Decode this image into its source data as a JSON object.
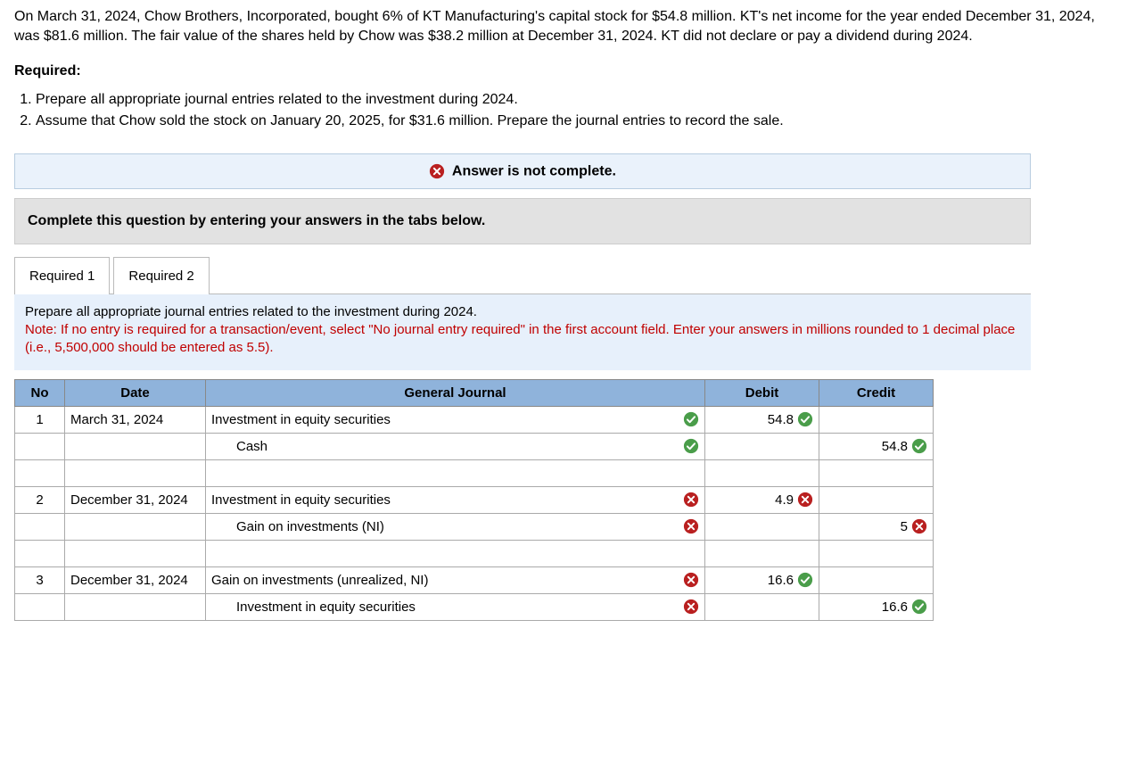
{
  "problem": {
    "paragraph": "On March 31, 2024, Chow Brothers, Incorporated, bought 6% of KT Manufacturing's capital stock for $54.8 million. KT's net income for the year ended December 31, 2024, was $81.6 million. The fair value of the shares held by Chow was $38.2 million at December 31, 2024. KT did not declare or pay a dividend during 2024.",
    "required_heading": "Required:",
    "requirements": [
      "Prepare all appropriate journal entries related to the investment during 2024.",
      "Assume that Chow sold the stock on January 20, 2025, for $31.6 million. Prepare the journal entries to record the sale."
    ]
  },
  "status": {
    "icon": "x-icon",
    "text": "Answer is not complete."
  },
  "instruction_bar": "Complete this question by entering your answers in the tabs below.",
  "tabs": [
    {
      "label": "Required 1",
      "active": true
    },
    {
      "label": "Required 2",
      "active": false
    }
  ],
  "panel": {
    "prompt": "Prepare all appropriate journal entries related to the investment during 2024.",
    "note": "Note: If no entry is required for a transaction/event, select \"No journal entry required\" in the first account field. Enter your answers in millions rounded to 1 decimal place (i.e., 5,500,000 should be entered as 5.5)."
  },
  "table": {
    "headers": {
      "no": "No",
      "date": "Date",
      "gj": "General Journal",
      "debit": "Debit",
      "credit": "Credit"
    },
    "rows": [
      {
        "no": "1",
        "date": "March 31, 2024",
        "account": "Investment in equity securities",
        "acct_status": "ok",
        "debit": "54.8",
        "debit_status": "ok",
        "credit": "",
        "credit_status": "",
        "indent": false
      },
      {
        "no": "",
        "date": "",
        "account": "Cash",
        "acct_status": "ok",
        "debit": "",
        "debit_status": "",
        "credit": "54.8",
        "credit_status": "ok",
        "indent": true
      },
      {
        "spacer": true
      },
      {
        "no": "2",
        "date": "December 31, 2024",
        "account": "Investment in equity securities",
        "acct_status": "bad",
        "debit": "4.9",
        "debit_status": "bad",
        "credit": "",
        "credit_status": "",
        "indent": false
      },
      {
        "no": "",
        "date": "",
        "account": "Gain on investments (NI)",
        "acct_status": "bad",
        "debit": "",
        "debit_status": "",
        "credit": "5",
        "credit_status": "bad",
        "indent": true
      },
      {
        "spacer": true
      },
      {
        "no": "3",
        "date": "December 31, 2024",
        "account": "Gain on investments (unrealized, NI)",
        "acct_status": "bad",
        "debit": "16.6",
        "debit_status": "ok",
        "credit": "",
        "credit_status": "",
        "indent": false
      },
      {
        "no": "",
        "date": "",
        "account": "Investment in equity securities",
        "acct_status": "bad",
        "debit": "",
        "debit_status": "",
        "credit": "16.6",
        "credit_status": "ok",
        "indent": true
      }
    ]
  },
  "colors": {
    "ok": "#4a9d4a",
    "bad": "#b92020"
  }
}
